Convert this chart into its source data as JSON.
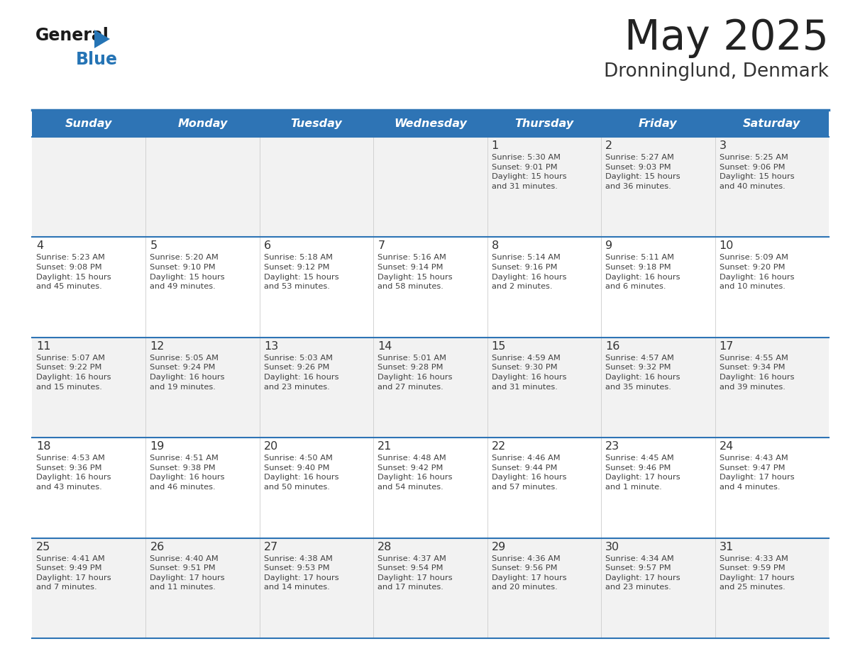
{
  "title": "May 2025",
  "subtitle": "Dronninglund, Denmark",
  "days_of_week": [
    "Sunday",
    "Monday",
    "Tuesday",
    "Wednesday",
    "Thursday",
    "Friday",
    "Saturday"
  ],
  "header_bg": "#2E74B5",
  "header_text_color": "#FFFFFF",
  "row_bg_odd": "#FFFFFF",
  "row_bg_even": "#F2F2F2",
  "cell_text_color": "#404040",
  "day_number_color": "#333333",
  "grid_line_color": "#2E74B5",
  "title_color": "#222222",
  "subtitle_color": "#333333",
  "logo_text_color": "#1a1a1a",
  "logo_blue_color": "#2574B5",
  "weeks": [
    {
      "days": [
        {
          "day": null,
          "info": null
        },
        {
          "day": null,
          "info": null
        },
        {
          "day": null,
          "info": null
        },
        {
          "day": null,
          "info": null
        },
        {
          "day": 1,
          "info": "Sunrise: 5:30 AM\nSunset: 9:01 PM\nDaylight: 15 hours\nand 31 minutes."
        },
        {
          "day": 2,
          "info": "Sunrise: 5:27 AM\nSunset: 9:03 PM\nDaylight: 15 hours\nand 36 minutes."
        },
        {
          "day": 3,
          "info": "Sunrise: 5:25 AM\nSunset: 9:06 PM\nDaylight: 15 hours\nand 40 minutes."
        }
      ]
    },
    {
      "days": [
        {
          "day": 4,
          "info": "Sunrise: 5:23 AM\nSunset: 9:08 PM\nDaylight: 15 hours\nand 45 minutes."
        },
        {
          "day": 5,
          "info": "Sunrise: 5:20 AM\nSunset: 9:10 PM\nDaylight: 15 hours\nand 49 minutes."
        },
        {
          "day": 6,
          "info": "Sunrise: 5:18 AM\nSunset: 9:12 PM\nDaylight: 15 hours\nand 53 minutes."
        },
        {
          "day": 7,
          "info": "Sunrise: 5:16 AM\nSunset: 9:14 PM\nDaylight: 15 hours\nand 58 minutes."
        },
        {
          "day": 8,
          "info": "Sunrise: 5:14 AM\nSunset: 9:16 PM\nDaylight: 16 hours\nand 2 minutes."
        },
        {
          "day": 9,
          "info": "Sunrise: 5:11 AM\nSunset: 9:18 PM\nDaylight: 16 hours\nand 6 minutes."
        },
        {
          "day": 10,
          "info": "Sunrise: 5:09 AM\nSunset: 9:20 PM\nDaylight: 16 hours\nand 10 minutes."
        }
      ]
    },
    {
      "days": [
        {
          "day": 11,
          "info": "Sunrise: 5:07 AM\nSunset: 9:22 PM\nDaylight: 16 hours\nand 15 minutes."
        },
        {
          "day": 12,
          "info": "Sunrise: 5:05 AM\nSunset: 9:24 PM\nDaylight: 16 hours\nand 19 minutes."
        },
        {
          "day": 13,
          "info": "Sunrise: 5:03 AM\nSunset: 9:26 PM\nDaylight: 16 hours\nand 23 minutes."
        },
        {
          "day": 14,
          "info": "Sunrise: 5:01 AM\nSunset: 9:28 PM\nDaylight: 16 hours\nand 27 minutes."
        },
        {
          "day": 15,
          "info": "Sunrise: 4:59 AM\nSunset: 9:30 PM\nDaylight: 16 hours\nand 31 minutes."
        },
        {
          "day": 16,
          "info": "Sunrise: 4:57 AM\nSunset: 9:32 PM\nDaylight: 16 hours\nand 35 minutes."
        },
        {
          "day": 17,
          "info": "Sunrise: 4:55 AM\nSunset: 9:34 PM\nDaylight: 16 hours\nand 39 minutes."
        }
      ]
    },
    {
      "days": [
        {
          "day": 18,
          "info": "Sunrise: 4:53 AM\nSunset: 9:36 PM\nDaylight: 16 hours\nand 43 minutes."
        },
        {
          "day": 19,
          "info": "Sunrise: 4:51 AM\nSunset: 9:38 PM\nDaylight: 16 hours\nand 46 minutes."
        },
        {
          "day": 20,
          "info": "Sunrise: 4:50 AM\nSunset: 9:40 PM\nDaylight: 16 hours\nand 50 minutes."
        },
        {
          "day": 21,
          "info": "Sunrise: 4:48 AM\nSunset: 9:42 PM\nDaylight: 16 hours\nand 54 minutes."
        },
        {
          "day": 22,
          "info": "Sunrise: 4:46 AM\nSunset: 9:44 PM\nDaylight: 16 hours\nand 57 minutes."
        },
        {
          "day": 23,
          "info": "Sunrise: 4:45 AM\nSunset: 9:46 PM\nDaylight: 17 hours\nand 1 minute."
        },
        {
          "day": 24,
          "info": "Sunrise: 4:43 AM\nSunset: 9:47 PM\nDaylight: 17 hours\nand 4 minutes."
        }
      ]
    },
    {
      "days": [
        {
          "day": 25,
          "info": "Sunrise: 4:41 AM\nSunset: 9:49 PM\nDaylight: 17 hours\nand 7 minutes."
        },
        {
          "day": 26,
          "info": "Sunrise: 4:40 AM\nSunset: 9:51 PM\nDaylight: 17 hours\nand 11 minutes."
        },
        {
          "day": 27,
          "info": "Sunrise: 4:38 AM\nSunset: 9:53 PM\nDaylight: 17 hours\nand 14 minutes."
        },
        {
          "day": 28,
          "info": "Sunrise: 4:37 AM\nSunset: 9:54 PM\nDaylight: 17 hours\nand 17 minutes."
        },
        {
          "day": 29,
          "info": "Sunrise: 4:36 AM\nSunset: 9:56 PM\nDaylight: 17 hours\nand 20 minutes."
        },
        {
          "day": 30,
          "info": "Sunrise: 4:34 AM\nSunset: 9:57 PM\nDaylight: 17 hours\nand 23 minutes."
        },
        {
          "day": 31,
          "info": "Sunrise: 4:33 AM\nSunset: 9:59 PM\nDaylight: 17 hours\nand 25 minutes."
        }
      ]
    }
  ]
}
